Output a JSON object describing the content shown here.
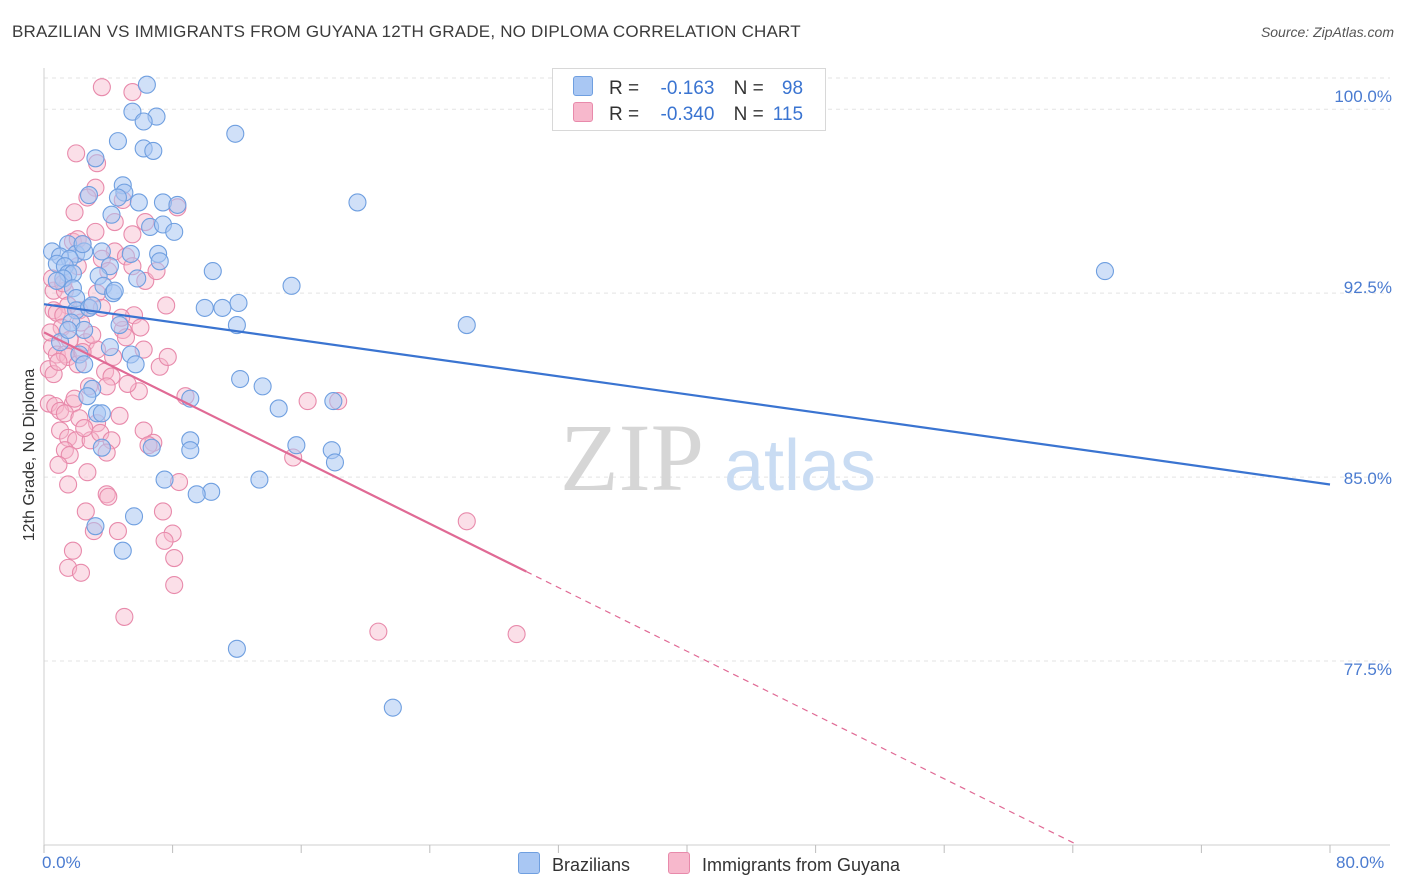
{
  "title": "BRAZILIAN VS IMMIGRANTS FROM GUYANA 12TH GRADE, NO DIPLOMA CORRELATION CHART",
  "source": "Source: ZipAtlas.com",
  "watermark": {
    "zip": "ZIP",
    "atlas": "atlas"
  },
  "legend": {
    "rows": [
      {
        "r_label": "R =",
        "r_value": "-0.163",
        "n_label": "N =",
        "n_value": "98",
        "color": "#a9c7f3"
      },
      {
        "r_label": "R =",
        "r_value": "-0.340",
        "n_label": "N =",
        "n_value": "115",
        "color": "#f7b8cc"
      }
    ]
  },
  "bottom_legend": [
    {
      "label": "Brazilians",
      "color": "#a9c7f3"
    },
    {
      "label": "Immigrants from Guyana",
      "color": "#f7b8cc"
    }
  ],
  "chart_data": {
    "type": "scatter",
    "ylabel": "12th Grade, No Diploma",
    "xlabel": "",
    "xlim": [
      0,
      80
    ],
    "ylim": [
      70,
      101.6
    ],
    "x_tick_labels": [
      "0.0%",
      "80.0%"
    ],
    "y_tick_labels": [
      "100.0%",
      "92.5%",
      "85.0%",
      "77.5%"
    ],
    "y_ticks": [
      100,
      92.5,
      85,
      77.5
    ],
    "grid": true,
    "colors": {
      "brazilians": "#3a74d1",
      "guyana": "#e06a95",
      "brazilians_fill": "#a9c7f3",
      "guyana_fill": "#f7b8cc"
    },
    "series": [
      {
        "name": "Brazilians",
        "trend": {
          "x0": 0,
          "y0": 92.05,
          "x1": 80,
          "y1": 84.7
        },
        "points": [
          [
            6.4,
            101
          ],
          [
            5.5,
            99.9
          ],
          [
            7.0,
            99.7
          ],
          [
            6.2,
            99.5
          ],
          [
            11.9,
            99.0
          ],
          [
            4.6,
            98.7
          ],
          [
            6.2,
            98.4
          ],
          [
            6.8,
            98.3
          ],
          [
            3.2,
            98.0
          ],
          [
            4.9,
            96.9
          ],
          [
            5.0,
            96.6
          ],
          [
            4.6,
            96.4
          ],
          [
            2.8,
            96.5
          ],
          [
            5.9,
            96.2
          ],
          [
            7.4,
            96.2
          ],
          [
            8.3,
            96.1
          ],
          [
            4.2,
            95.7
          ],
          [
            6.6,
            95.2
          ],
          [
            7.4,
            95.3
          ],
          [
            8.1,
            95.0
          ],
          [
            19.5,
            96.2
          ],
          [
            1.5,
            94.5
          ],
          [
            0.5,
            94.2
          ],
          [
            2.0,
            94.1
          ],
          [
            2.5,
            94.2
          ],
          [
            3.6,
            94.2
          ],
          [
            1.0,
            94.0
          ],
          [
            1.6,
            93.9
          ],
          [
            0.8,
            93.7
          ],
          [
            1.3,
            93.6
          ],
          [
            5.4,
            94.1
          ],
          [
            7.1,
            94.1
          ],
          [
            7.2,
            93.8
          ],
          [
            4.1,
            93.6
          ],
          [
            3.4,
            93.2
          ],
          [
            10.5,
            93.4
          ],
          [
            5.8,
            93.1
          ],
          [
            1.5,
            93.3
          ],
          [
            1.8,
            93.3
          ],
          [
            1.2,
            93.1
          ],
          [
            1.8,
            92.7
          ],
          [
            2.0,
            92.3
          ],
          [
            3.7,
            92.8
          ],
          [
            4.3,
            92.5
          ],
          [
            15.4,
            92.8
          ],
          [
            12.1,
            92.1
          ],
          [
            11.1,
            91.9
          ],
          [
            10.0,
            91.9
          ],
          [
            2.0,
            91.8
          ],
          [
            2.8,
            91.9
          ],
          [
            1.7,
            91.3
          ],
          [
            2.5,
            91.0
          ],
          [
            4.7,
            91.2
          ],
          [
            12.0,
            91.2
          ],
          [
            26.3,
            91.2
          ],
          [
            1.0,
            90.5
          ],
          [
            4.1,
            90.3
          ],
          [
            2.2,
            90.0
          ],
          [
            5.4,
            90.0
          ],
          [
            5.7,
            89.6
          ],
          [
            2.5,
            89.6
          ],
          [
            12.2,
            89.0
          ],
          [
            13.6,
            88.7
          ],
          [
            18.0,
            88.1
          ],
          [
            3.0,
            88.6
          ],
          [
            2.7,
            88.3
          ],
          [
            9.1,
            88.2
          ],
          [
            3.3,
            87.6
          ],
          [
            14.6,
            87.8
          ],
          [
            3.6,
            87.6
          ],
          [
            9.1,
            86.5
          ],
          [
            9.1,
            86.1
          ],
          [
            15.7,
            86.3
          ],
          [
            3.6,
            86.2
          ],
          [
            6.7,
            86.2
          ],
          [
            17.9,
            86.1
          ],
          [
            18.1,
            85.6
          ],
          [
            13.4,
            84.9
          ],
          [
            7.5,
            84.9
          ],
          [
            10.4,
            84.4
          ],
          [
            9.5,
            84.3
          ],
          [
            5.6,
            83.4
          ],
          [
            3.2,
            83.0
          ],
          [
            4.9,
            82.0
          ],
          [
            12.0,
            78.0
          ],
          [
            21.7,
            75.6
          ],
          [
            66.0,
            93.4
          ],
          [
            4.4,
            92.6
          ],
          [
            2.4,
            94.5
          ],
          [
            0.8,
            93.0
          ],
          [
            3.0,
            92.0
          ],
          [
            1.5,
            91.0
          ]
        ]
      },
      {
        "name": "Immigrants from Guyana",
        "trend": {
          "x0": 0,
          "y0": 90.9,
          "x1": 30,
          "y1": 81.15,
          "dash_x1": 80,
          "dash_y1": 64.9
        },
        "points": [
          [
            3.6,
            100.9
          ],
          [
            5.5,
            100.7
          ],
          [
            2.0,
            98.2
          ],
          [
            3.3,
            97.8
          ],
          [
            3.2,
            96.8
          ],
          [
            4.9,
            96.3
          ],
          [
            2.7,
            96.4
          ],
          [
            8.3,
            96.0
          ],
          [
            1.9,
            95.8
          ],
          [
            4.4,
            95.4
          ],
          [
            6.3,
            95.4
          ],
          [
            3.2,
            95.0
          ],
          [
            5.5,
            94.9
          ],
          [
            1.8,
            94.6
          ],
          [
            2.1,
            94.7
          ],
          [
            2.4,
            94.5
          ],
          [
            4.4,
            94.2
          ],
          [
            5.1,
            94.0
          ],
          [
            3.6,
            93.9
          ],
          [
            5.5,
            93.6
          ],
          [
            0.6,
            92.6
          ],
          [
            1.3,
            92.6
          ],
          [
            3.3,
            92.5
          ],
          [
            1.5,
            92.0
          ],
          [
            2.2,
            91.8
          ],
          [
            2.8,
            91.9
          ],
          [
            0.6,
            91.8
          ],
          [
            0.8,
            91.7
          ],
          [
            1.2,
            91.6
          ],
          [
            2.3,
            91.3
          ],
          [
            5.6,
            91.6
          ],
          [
            7.6,
            92.0
          ],
          [
            4.9,
            91.0
          ],
          [
            5.1,
            90.7
          ],
          [
            2.6,
            90.5
          ],
          [
            3.3,
            90.2
          ],
          [
            0.5,
            90.3
          ],
          [
            0.8,
            90.0
          ],
          [
            1.3,
            90.0
          ],
          [
            1.5,
            89.9
          ],
          [
            2.1,
            89.6
          ],
          [
            0.3,
            89.4
          ],
          [
            0.6,
            89.2
          ],
          [
            3.8,
            89.3
          ],
          [
            4.2,
            89.1
          ],
          [
            6.2,
            90.2
          ],
          [
            7.2,
            89.5
          ],
          [
            2.8,
            88.7
          ],
          [
            3.9,
            88.7
          ],
          [
            5.9,
            88.5
          ],
          [
            8.8,
            88.3
          ],
          [
            0.3,
            88.0
          ],
          [
            0.7,
            87.9
          ],
          [
            1.8,
            88.0
          ],
          [
            1.0,
            87.7
          ],
          [
            1.3,
            87.6
          ],
          [
            2.2,
            87.4
          ],
          [
            3.3,
            87.2
          ],
          [
            16.4,
            88.1
          ],
          [
            18.3,
            88.1
          ],
          [
            1.0,
            86.9
          ],
          [
            1.5,
            86.6
          ],
          [
            2.0,
            86.5
          ],
          [
            2.9,
            86.5
          ],
          [
            3.5,
            86.8
          ],
          [
            6.2,
            86.9
          ],
          [
            6.8,
            86.4
          ],
          [
            4.2,
            86.5
          ],
          [
            1.3,
            86.1
          ],
          [
            1.6,
            85.9
          ],
          [
            0.9,
            85.5
          ],
          [
            15.5,
            85.8
          ],
          [
            1.5,
            84.7
          ],
          [
            3.9,
            84.3
          ],
          [
            4.0,
            84.2
          ],
          [
            2.6,
            83.6
          ],
          [
            7.4,
            83.6
          ],
          [
            3.1,
            82.8
          ],
          [
            4.6,
            82.8
          ],
          [
            8.0,
            82.7
          ],
          [
            7.5,
            82.4
          ],
          [
            26.3,
            83.2
          ],
          [
            1.8,
            82.0
          ],
          [
            8.1,
            81.7
          ],
          [
            1.5,
            81.3
          ],
          [
            2.3,
            81.1
          ],
          [
            8.1,
            80.6
          ],
          [
            5.0,
            79.3
          ],
          [
            20.8,
            78.7
          ],
          [
            29.4,
            78.6
          ],
          [
            0.5,
            93.1
          ],
          [
            1.2,
            92.9
          ],
          [
            2.1,
            93.6
          ],
          [
            4.0,
            93.4
          ],
          [
            6.3,
            93.0
          ],
          [
            7.0,
            93.4
          ],
          [
            3.6,
            91.9
          ],
          [
            4.8,
            91.5
          ],
          [
            1.1,
            91.1
          ],
          [
            0.4,
            90.9
          ],
          [
            2.4,
            90.1
          ],
          [
            6.5,
            86.3
          ],
          [
            5.2,
            88.8
          ],
          [
            4.3,
            89.9
          ],
          [
            1.9,
            88.2
          ],
          [
            0.9,
            89.7
          ],
          [
            3.0,
            90.8
          ],
          [
            2.5,
            87.0
          ],
          [
            1.6,
            90.6
          ],
          [
            4.7,
            87.5
          ],
          [
            3.9,
            86.0
          ],
          [
            6.0,
            91.1
          ],
          [
            8.4,
            84.8
          ],
          [
            7.7,
            89.9
          ],
          [
            2.7,
            85.2
          ]
        ]
      }
    ]
  }
}
